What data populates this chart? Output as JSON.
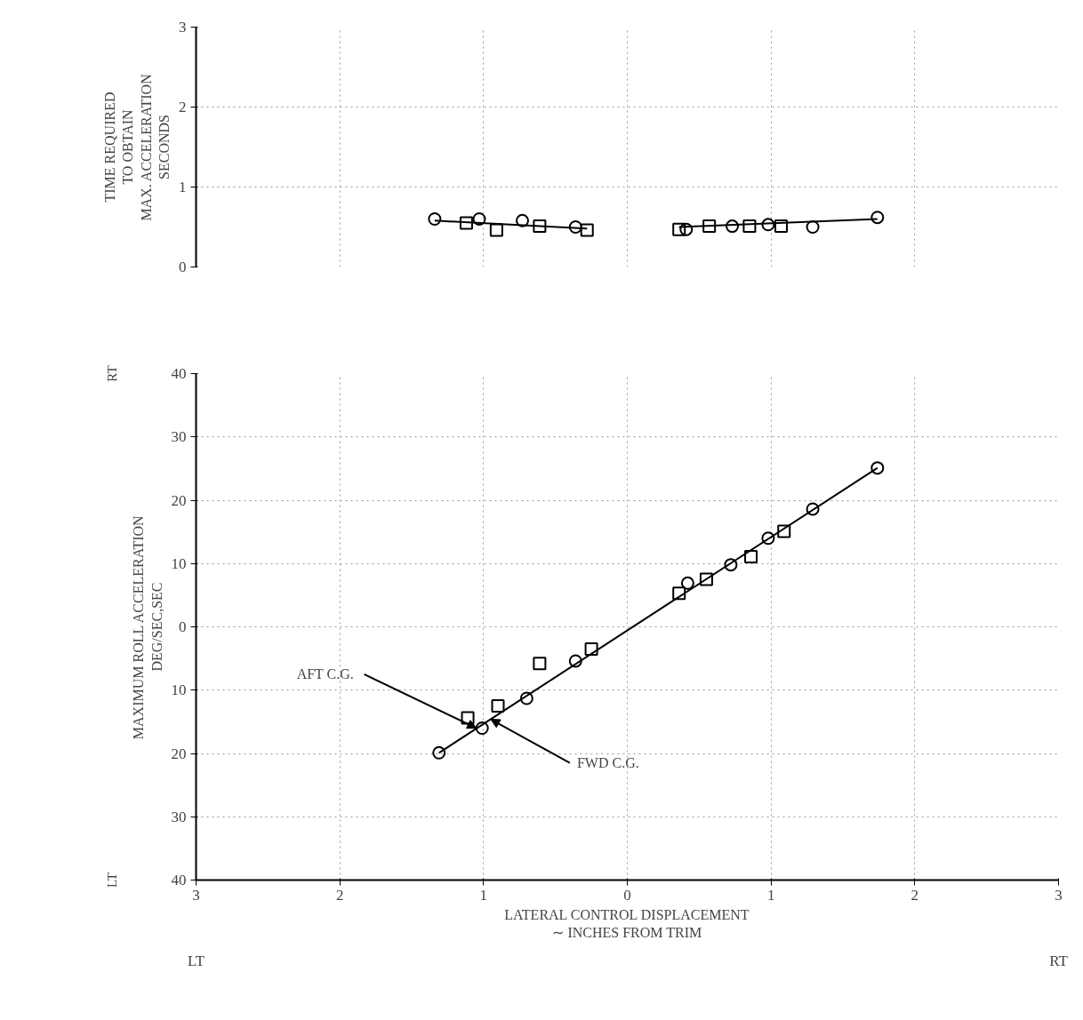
{
  "chart_data": [
    {
      "type": "scatter",
      "ylabel": "TIME REQUIRED\nTO OBTAIN\nMAX. ACCELERATION\nSECONDS",
      "xlim": [
        -3,
        3
      ],
      "ylim": [
        0,
        3
      ],
      "yticks": [
        0,
        1,
        2,
        3
      ],
      "tick_labels": "y",
      "grid": true,
      "series": [
        {
          "color": "#000000",
          "marker": "circle",
          "x": [
            -1.34,
            -1.03,
            -0.73,
            -0.36,
            0.41,
            0.73,
            0.98,
            1.29,
            1.74
          ],
          "values": [
            0.6,
            0.6,
            0.58,
            0.5,
            0.47,
            0.51,
            0.53,
            0.5,
            0.62
          ]
        },
        {
          "color": "#000000",
          "marker": "square",
          "x": [
            -1.12,
            -0.91,
            -0.61,
            -0.28,
            0.36,
            0.57,
            0.85,
            1.07
          ],
          "values": [
            0.55,
            0.46,
            0.51,
            0.46,
            0.47,
            0.51,
            0.51,
            0.51
          ]
        },
        {
          "type": "line",
          "color": "#000000",
          "line_style": "solid",
          "x": [
            -1.34,
            -0.28
          ],
          "values": [
            0.58,
            0.48
          ]
        },
        {
          "type": "line",
          "color": "#000000",
          "line_style": "solid",
          "x": [
            0.36,
            1.74
          ],
          "values": [
            0.5,
            0.6
          ]
        }
      ]
    },
    {
      "type": "scatter",
      "xlabel": "LATERAL CONTROL DISPLACEMENT\n∼ INCHES FROM TRIM",
      "ylabel": "MAXIMUM ROLL ACCELERATION\nDEG/SEC,SEC",
      "xlim": [
        -3,
        3
      ],
      "ylim": [
        -40,
        40
      ],
      "xticks": [
        {
          "value": -3,
          "label": "3"
        },
        {
          "value": -2,
          "label": "2"
        },
        {
          "value": -1,
          "label": "1"
        },
        0,
        1,
        2,
        3
      ],
      "yticks": [
        {
          "value": -40,
          "label": "40"
        },
        {
          "value": -30,
          "label": "30"
        },
        {
          "value": -20,
          "label": "20"
        },
        {
          "value": -10,
          "label": "10"
        },
        0,
        10,
        20,
        30,
        40
      ],
      "grid": true,
      "annotations": [
        {
          "text": "AFT C.G.",
          "x": -1.05,
          "y": -16.0
        },
        {
          "text": "FWD C.G.",
          "x": -0.95,
          "y": -14.6
        },
        "LT",
        "RT",
        "LT",
        "RT"
      ],
      "series": [
        {
          "color": "#000000",
          "marker": "circle",
          "x": [
            -1.31,
            -1.01,
            -0.7,
            -0.36,
            0.42,
            0.72,
            0.98,
            1.29,
            1.74
          ],
          "values": [
            -19.9,
            -16.0,
            -11.3,
            -5.4,
            6.9,
            9.8,
            14.0,
            18.6,
            25.1
          ]
        },
        {
          "color": "#000000",
          "marker": "square",
          "x": [
            -1.11,
            -0.9,
            -0.61,
            -0.25,
            0.36,
            0.55,
            0.86,
            1.09
          ],
          "values": [
            -14.4,
            -12.5,
            -5.8,
            -3.5,
            5.3,
            7.5,
            11.1,
            15.1
          ]
        },
        {
          "type": "line",
          "color": "#000000",
          "line_style": "solid",
          "x": [
            -1.31,
            1.74
          ],
          "values": [
            -19.9,
            25.1
          ]
        }
      ]
    }
  ]
}
